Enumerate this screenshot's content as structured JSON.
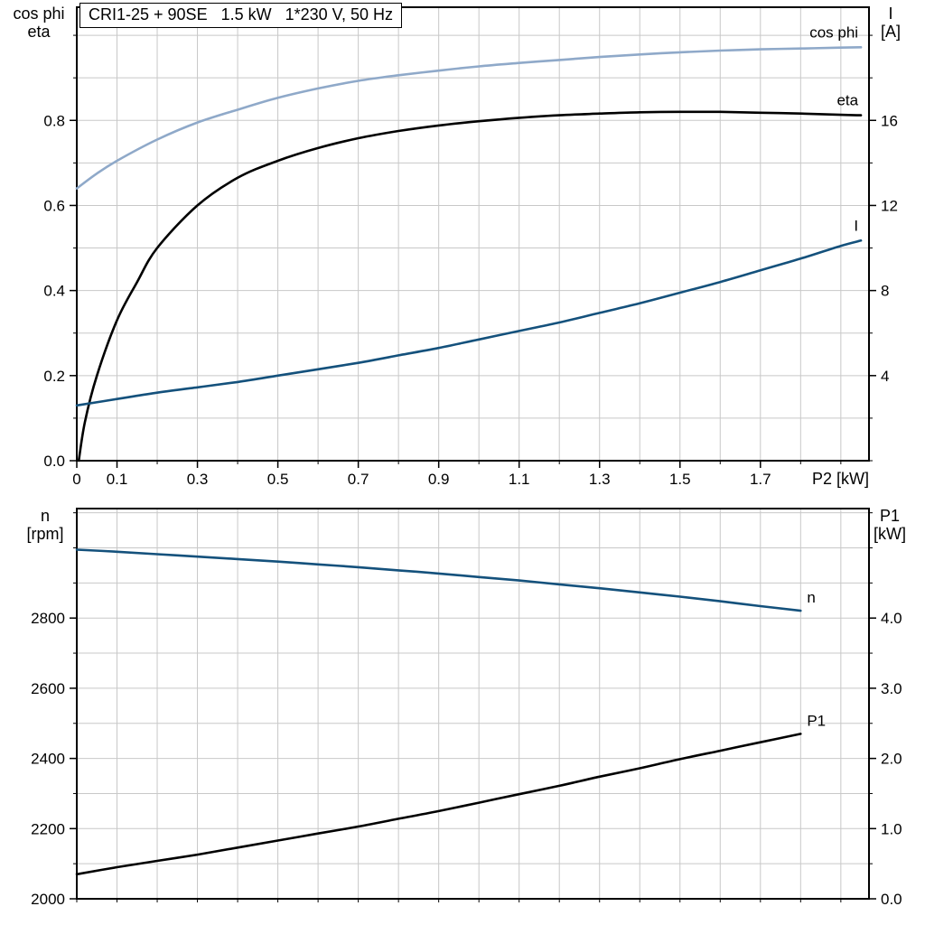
{
  "chart_data": [
    {
      "type": "line",
      "title": "CRI1-25 + 90SE   1.5 kW   1*230 V, 50 Hz",
      "grid": true,
      "legend_position": "curve-end-labels",
      "x_axis": {
        "label": "P2 [kW]",
        "min": 0,
        "max": 1.97,
        "minor_step": 0.1,
        "tick_values": [
          0,
          0.1,
          0.3,
          0.5,
          0.7,
          0.9,
          1.1,
          1.3,
          1.5,
          1.7
        ],
        "tick_labels": [
          "0",
          "0.1",
          "0.3",
          "0.5",
          "0.7",
          "0.9",
          "1.1",
          "1.3",
          "1.5",
          "1.7"
        ]
      },
      "y_left": {
        "label_lines": [
          "cos phi",
          "eta"
        ],
        "min": 0,
        "max": 1.066,
        "minor_step": 0.1,
        "tick_values": [
          0,
          0.2,
          0.4,
          0.6,
          0.8
        ],
        "tick_labels": [
          "0.0",
          "0.2",
          "0.4",
          "0.6",
          "0.8"
        ]
      },
      "y_right": {
        "label_lines": [
          "I",
          "[A]"
        ],
        "min": 0,
        "max": 21.32,
        "minor_step": 2,
        "tick_values": [
          4,
          8,
          12,
          16
        ],
        "tick_labels": [
          "4",
          "8",
          "12",
          "16"
        ]
      },
      "series": [
        {
          "name": "cos phi",
          "axis": "left",
          "color": "#8FA9C9",
          "label_align": "end",
          "x": [
            0,
            0.05,
            0.1,
            0.2,
            0.3,
            0.4,
            0.5,
            0.6,
            0.7,
            0.8,
            0.9,
            1.0,
            1.1,
            1.2,
            1.3,
            1.4,
            1.5,
            1.6,
            1.7,
            1.8,
            1.9,
            1.95
          ],
          "y": [
            0.64,
            0.675,
            0.705,
            0.755,
            0.795,
            0.825,
            0.853,
            0.875,
            0.893,
            0.906,
            0.917,
            0.927,
            0.935,
            0.942,
            0.949,
            0.955,
            0.96,
            0.964,
            0.967,
            0.969,
            0.971,
            0.972
          ]
        },
        {
          "name": "eta",
          "axis": "left",
          "color": "#000000",
          "label_align": "end",
          "x": [
            0.005,
            0.02,
            0.05,
            0.1,
            0.15,
            0.2,
            0.3,
            0.4,
            0.5,
            0.6,
            0.7,
            0.8,
            0.9,
            1.0,
            1.1,
            1.2,
            1.3,
            1.4,
            1.5,
            1.6,
            1.7,
            1.8,
            1.9,
            1.95
          ],
          "y": [
            0,
            0.09,
            0.2,
            0.33,
            0.42,
            0.5,
            0.6,
            0.665,
            0.705,
            0.735,
            0.758,
            0.775,
            0.788,
            0.798,
            0.806,
            0.812,
            0.816,
            0.819,
            0.82,
            0.82,
            0.818,
            0.816,
            0.813,
            0.812
          ]
        },
        {
          "name": "I",
          "axis": "right",
          "color": "#14517C",
          "label_align": "end",
          "x": [
            0,
            0.1,
            0.2,
            0.3,
            0.4,
            0.5,
            0.6,
            0.7,
            0.8,
            0.9,
            1.0,
            1.1,
            1.2,
            1.3,
            1.4,
            1.5,
            1.6,
            1.7,
            1.8,
            1.9,
            1.95
          ],
          "y": [
            2.6,
            2.9,
            3.2,
            3.45,
            3.7,
            4.0,
            4.3,
            4.6,
            4.95,
            5.3,
            5.7,
            6.1,
            6.5,
            6.95,
            7.4,
            7.9,
            8.4,
            8.95,
            9.5,
            10.1,
            10.35
          ]
        }
      ]
    },
    {
      "type": "line",
      "title": "",
      "grid": true,
      "legend_position": "curve-end-labels",
      "x_axis": {
        "label": "",
        "min": 0,
        "max": 1.97,
        "minor_step": 0.1,
        "tick_values": [],
        "tick_labels": []
      },
      "y_left": {
        "label_lines": [
          "n",
          "[rpm]"
        ],
        "min": 2000,
        "max": 3112,
        "minor_step": 100,
        "tick_values": [
          2000,
          2200,
          2400,
          2600,
          2800
        ],
        "tick_labels": [
          "2000",
          "2200",
          "2400",
          "2600",
          "2800"
        ]
      },
      "y_right": {
        "label_lines": [
          "P1",
          "[kW]"
        ],
        "min": 0,
        "max": 5.56,
        "minor_step": 0.5,
        "tick_values": [
          0,
          1,
          2,
          3,
          4
        ],
        "tick_labels": [
          "0.0",
          "1.0",
          "2.0",
          "3.0",
          "4.0"
        ]
      },
      "series": [
        {
          "name": "n",
          "axis": "left",
          "color": "#14517C",
          "label_align": "start",
          "x": [
            0,
            0.1,
            0.2,
            0.3,
            0.4,
            0.5,
            0.6,
            0.7,
            0.8,
            0.9,
            1.0,
            1.1,
            1.2,
            1.3,
            1.4,
            1.5,
            1.6,
            1.7,
            1.8
          ],
          "y": [
            2995,
            2989,
            2982,
            2975,
            2968,
            2961,
            2953,
            2945,
            2936,
            2927,
            2917,
            2907,
            2896,
            2885,
            2873,
            2861,
            2848,
            2834,
            2821
          ]
        },
        {
          "name": "P1",
          "axis": "right",
          "color": "#000000",
          "label_align": "start",
          "x": [
            0,
            0.1,
            0.2,
            0.3,
            0.4,
            0.5,
            0.6,
            0.7,
            0.8,
            0.9,
            1.0,
            1.1,
            1.2,
            1.3,
            1.4,
            1.5,
            1.6,
            1.7,
            1.8
          ],
          "y": [
            0.35,
            0.45,
            0.54,
            0.63,
            0.73,
            0.83,
            0.93,
            1.03,
            1.14,
            1.25,
            1.37,
            1.49,
            1.61,
            1.74,
            1.86,
            1.99,
            2.11,
            2.23,
            2.35
          ]
        }
      ]
    }
  ],
  "colors": {
    "grid": "#c8c8c8",
    "axis": "#000000",
    "cos_phi_curve": "#8FA9C9",
    "dark_blue_curve": "#14517C",
    "black_curve": "#000000"
  }
}
